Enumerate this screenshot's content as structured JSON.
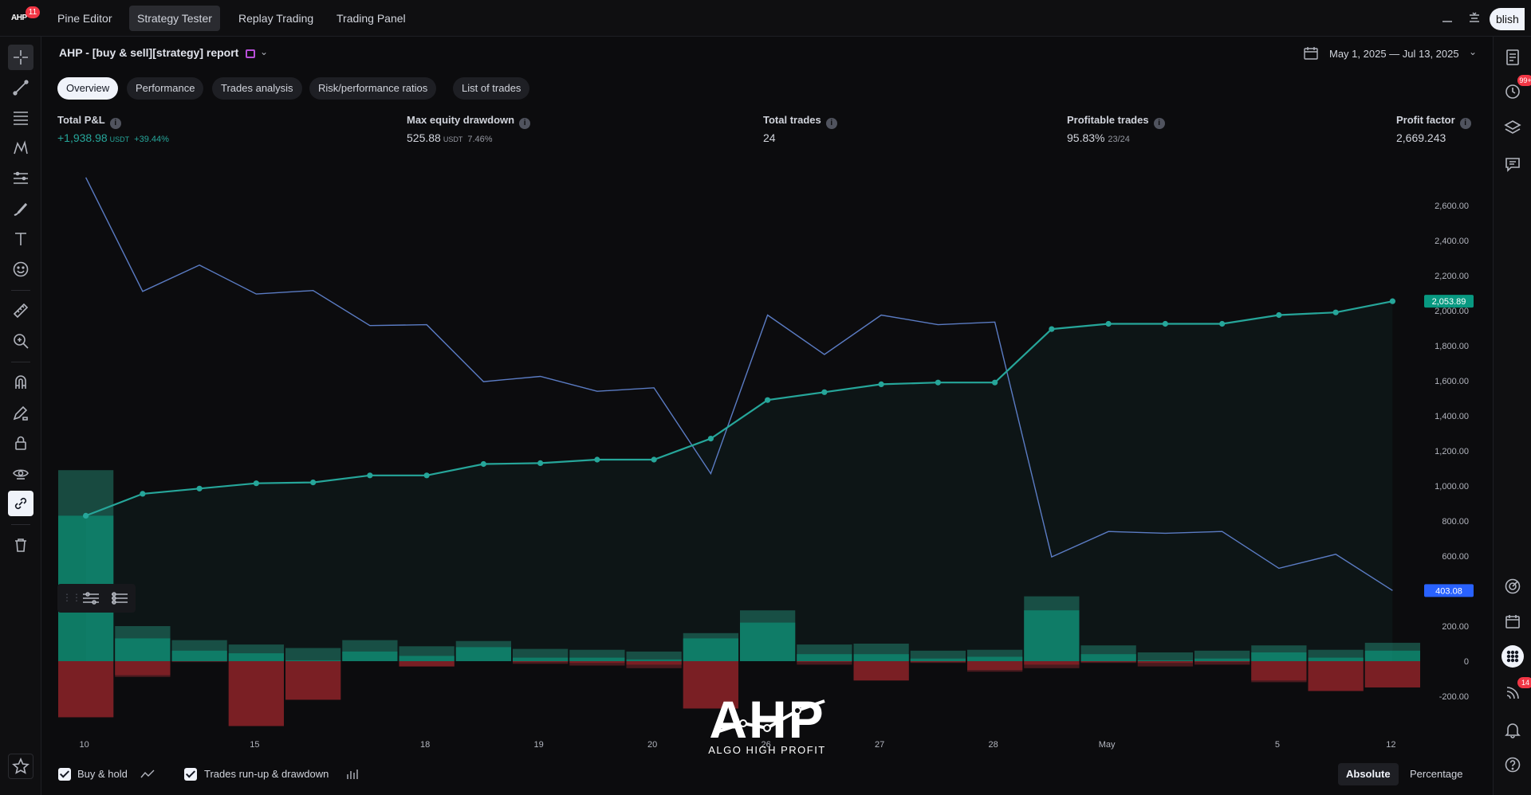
{
  "topbar": {
    "logo_text": "AHP",
    "logo_badge": "11",
    "tabs": [
      {
        "label": "Pine Editor",
        "active": false
      },
      {
        "label": "Strategy Tester",
        "active": true
      },
      {
        "label": "Replay Trading",
        "active": false
      },
      {
        "label": "Trading Panel",
        "active": false
      }
    ],
    "publish_label": "Publish",
    "publish_visible": "blish"
  },
  "report": {
    "title": "AHP - [buy & sell][strategy] report",
    "date_range": "May 1, 2025 — Jul 13, 2025",
    "tabs": [
      {
        "label": "Overview",
        "active": true
      },
      {
        "label": "Performance",
        "active": false
      },
      {
        "label": "Trades analysis",
        "active": false
      },
      {
        "label": "Risk/performance ratios",
        "active": false
      },
      {
        "label": "List of trades",
        "active": false
      }
    ]
  },
  "metrics": {
    "total_pnl": {
      "label": "Total P&L",
      "value": "+1,938.98",
      "unit": "USDT",
      "sub": "+39.44%"
    },
    "max_drawdown": {
      "label": "Max equity drawdown",
      "value": "525.88",
      "unit": "USDT",
      "sub": "7.46%"
    },
    "total_trades": {
      "label": "Total trades",
      "value": "24"
    },
    "profitable_trades": {
      "label": "Profitable trades",
      "value": "95.83%",
      "sub": "23/24"
    },
    "profit_factor": {
      "label": "Profit factor",
      "value": "2,669.243"
    }
  },
  "chart_data": {
    "type": "line",
    "x_tick_labels": [
      "10",
      "15",
      "18",
      "19",
      "20",
      "26",
      "27",
      "28",
      "May",
      "5",
      "12"
    ],
    "y_tick_labels": [
      "2,600.00",
      "2,400.00",
      "2,200.00",
      "2,000.00",
      "1,800.00",
      "1,600.00",
      "1,400.00",
      "1,200.00",
      "1,000.00",
      "800.00",
      "600.00",
      "200.00",
      "0",
      "-200.00"
    ],
    "ylim": [
      -280,
      2800
    ],
    "equity_last_label": "2,053.89",
    "buyhold_last_label": "403.08",
    "series": [
      {
        "key": "equity",
        "color": "#26a69a",
        "values": [
          830,
          955,
          985,
          1015,
          1020,
          1060,
          1060,
          1125,
          1130,
          1150,
          1150,
          1270,
          1490,
          1535,
          1580,
          1590,
          1590,
          1895,
          1925,
          1925,
          1925,
          1975,
          1990,
          2053.89
        ]
      },
      {
        "key": "buyhold",
        "color": "#5b7cc4",
        "values": [
          2760,
          2110,
          2260,
          2095,
          2115,
          1915,
          1920,
          1595,
          1625,
          1540,
          1560,
          1070,
          1975,
          1750,
          1975,
          1920,
          1935,
          595,
          740,
          730,
          740,
          530,
          610,
          403.08
        ]
      }
    ],
    "runup": [
      1090,
      200,
      120,
      95,
      75,
      120,
      85,
      115,
      70,
      65,
      55,
      160,
      290,
      95,
      100,
      60,
      65,
      370,
      90,
      50,
      60,
      90,
      65,
      105
    ],
    "runup_inner": [
      830,
      130,
      60,
      45,
      5,
      55,
      30,
      80,
      20,
      20,
      10,
      130,
      220,
      40,
      40,
      15,
      25,
      290,
      40,
      5,
      15,
      50,
      20,
      60
    ],
    "drawdown": [
      -320,
      -90,
      -5,
      -370,
      -220,
      0,
      -30,
      0,
      -15,
      -25,
      -40,
      -270,
      0,
      -20,
      -110,
      -10,
      -60,
      -40,
      -10,
      -30,
      -20,
      -120,
      -170,
      -150
    ],
    "drawdown_inner": [
      -320,
      -80,
      0,
      -370,
      -220,
      0,
      -30,
      0,
      -5,
      -10,
      -20,
      -270,
      0,
      -5,
      -110,
      -5,
      -50,
      -20,
      -5,
      -10,
      -5,
      -110,
      -170,
      -150
    ],
    "colors": {
      "runup": "#0e7a64",
      "runup_dark": "#184a40",
      "drawdown": "#7a1f24",
      "drawdown_dark": "#4a1a1e",
      "grid": "#16171b"
    }
  },
  "bottom": {
    "buy_hold_label": "Buy & hold",
    "trades_runup_label": "Trades run-up & drawdown",
    "absolute_label": "Absolute",
    "percentage_label": "Percentage"
  },
  "right_badges": {
    "alerts": "99+",
    "notifications": "14"
  },
  "watermark": {
    "brand": "AHP",
    "tagline": "ALGO HIGH PROFIT"
  }
}
